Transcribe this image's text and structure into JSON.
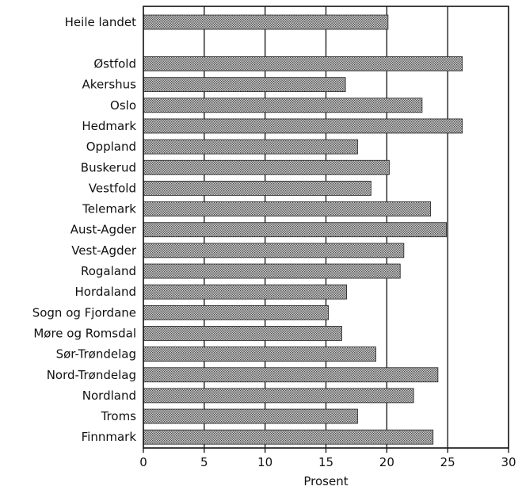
{
  "chart_data": {
    "type": "bar",
    "orientation": "horizontal",
    "categories": [
      "Heile landet",
      "Østfold",
      "Akershus",
      "Oslo",
      "Hedmark",
      "Oppland",
      "Buskerud",
      "Vestfold",
      "Telemark",
      "Aust-Agder",
      "Vest-Agder",
      "Rogaland",
      "Hordaland",
      "Sogn og Fjordane",
      "Møre og Romsdal",
      "Sør-Trøndelag",
      "Nord-Trøndelag",
      "Nordland",
      "Troms",
      "Finnmark"
    ],
    "values": [
      20.1,
      26.2,
      16.6,
      22.9,
      26.2,
      17.6,
      20.2,
      18.7,
      23.6,
      24.9,
      21.4,
      21.1,
      16.7,
      15.2,
      16.3,
      19.1,
      24.2,
      22.2,
      17.6,
      23.8
    ],
    "xlabel": "Prosent",
    "xlim": [
      0,
      30
    ],
    "xticks": [
      0,
      5,
      10,
      15,
      20,
      25,
      30
    ],
    "xtick_labels": [
      "0",
      "5",
      "10",
      "15",
      "20",
      "25",
      "30"
    ],
    "grid": "vertical",
    "bar_fill": "crosshatch",
    "colors": {
      "bar": "#9a9a9a",
      "ink": "#111111",
      "background": "#ffffff"
    }
  }
}
